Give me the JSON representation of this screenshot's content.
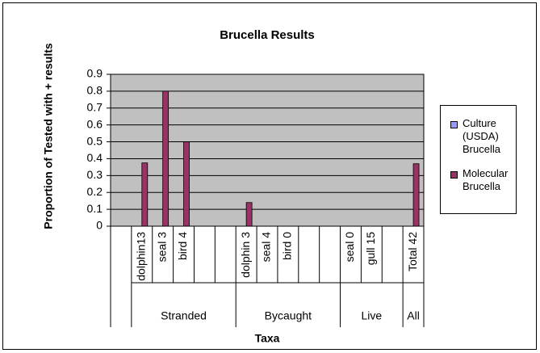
{
  "chart_data": {
    "type": "bar",
    "title": "Brucella Results",
    "x_label": "Taxa",
    "y_label": "Proportion of Tested with + results",
    "categories": [
      null,
      "dolphin13",
      "seal 3",
      "bird 4",
      null,
      null,
      "dolphin 3",
      "seal 4",
      "bird 0",
      null,
      null,
      "seal 0",
      "gull 15",
      null,
      "Total 42"
    ],
    "groups": [
      {
        "label": null,
        "span": 1
      },
      {
        "label": "Stranded",
        "span": 5
      },
      {
        "label": "Bycaught",
        "span": 5
      },
      {
        "label": "Live",
        "span": 3
      },
      {
        "label": "All",
        "span": 1
      }
    ],
    "series": [
      {
        "name": "Culture (USDA) Brucella",
        "color": "#9999ff",
        "values": [
          null,
          0,
          0,
          0,
          null,
          null,
          0,
          0,
          0,
          null,
          null,
          0,
          0,
          null,
          0
        ]
      },
      {
        "name": "Molecular Brucella",
        "color": "#993366",
        "values": [
          null,
          0.375,
          0.8,
          0.5,
          null,
          null,
          0.14,
          0,
          0,
          null,
          null,
          0,
          0,
          null,
          0.37
        ]
      }
    ],
    "ylim": [
      0,
      0.9
    ],
    "yticks": [
      0,
      0.1,
      0.2,
      0.3,
      0.4,
      0.5,
      0.6,
      0.7,
      0.8,
      0.9
    ],
    "grid": true,
    "legend": "right"
  }
}
